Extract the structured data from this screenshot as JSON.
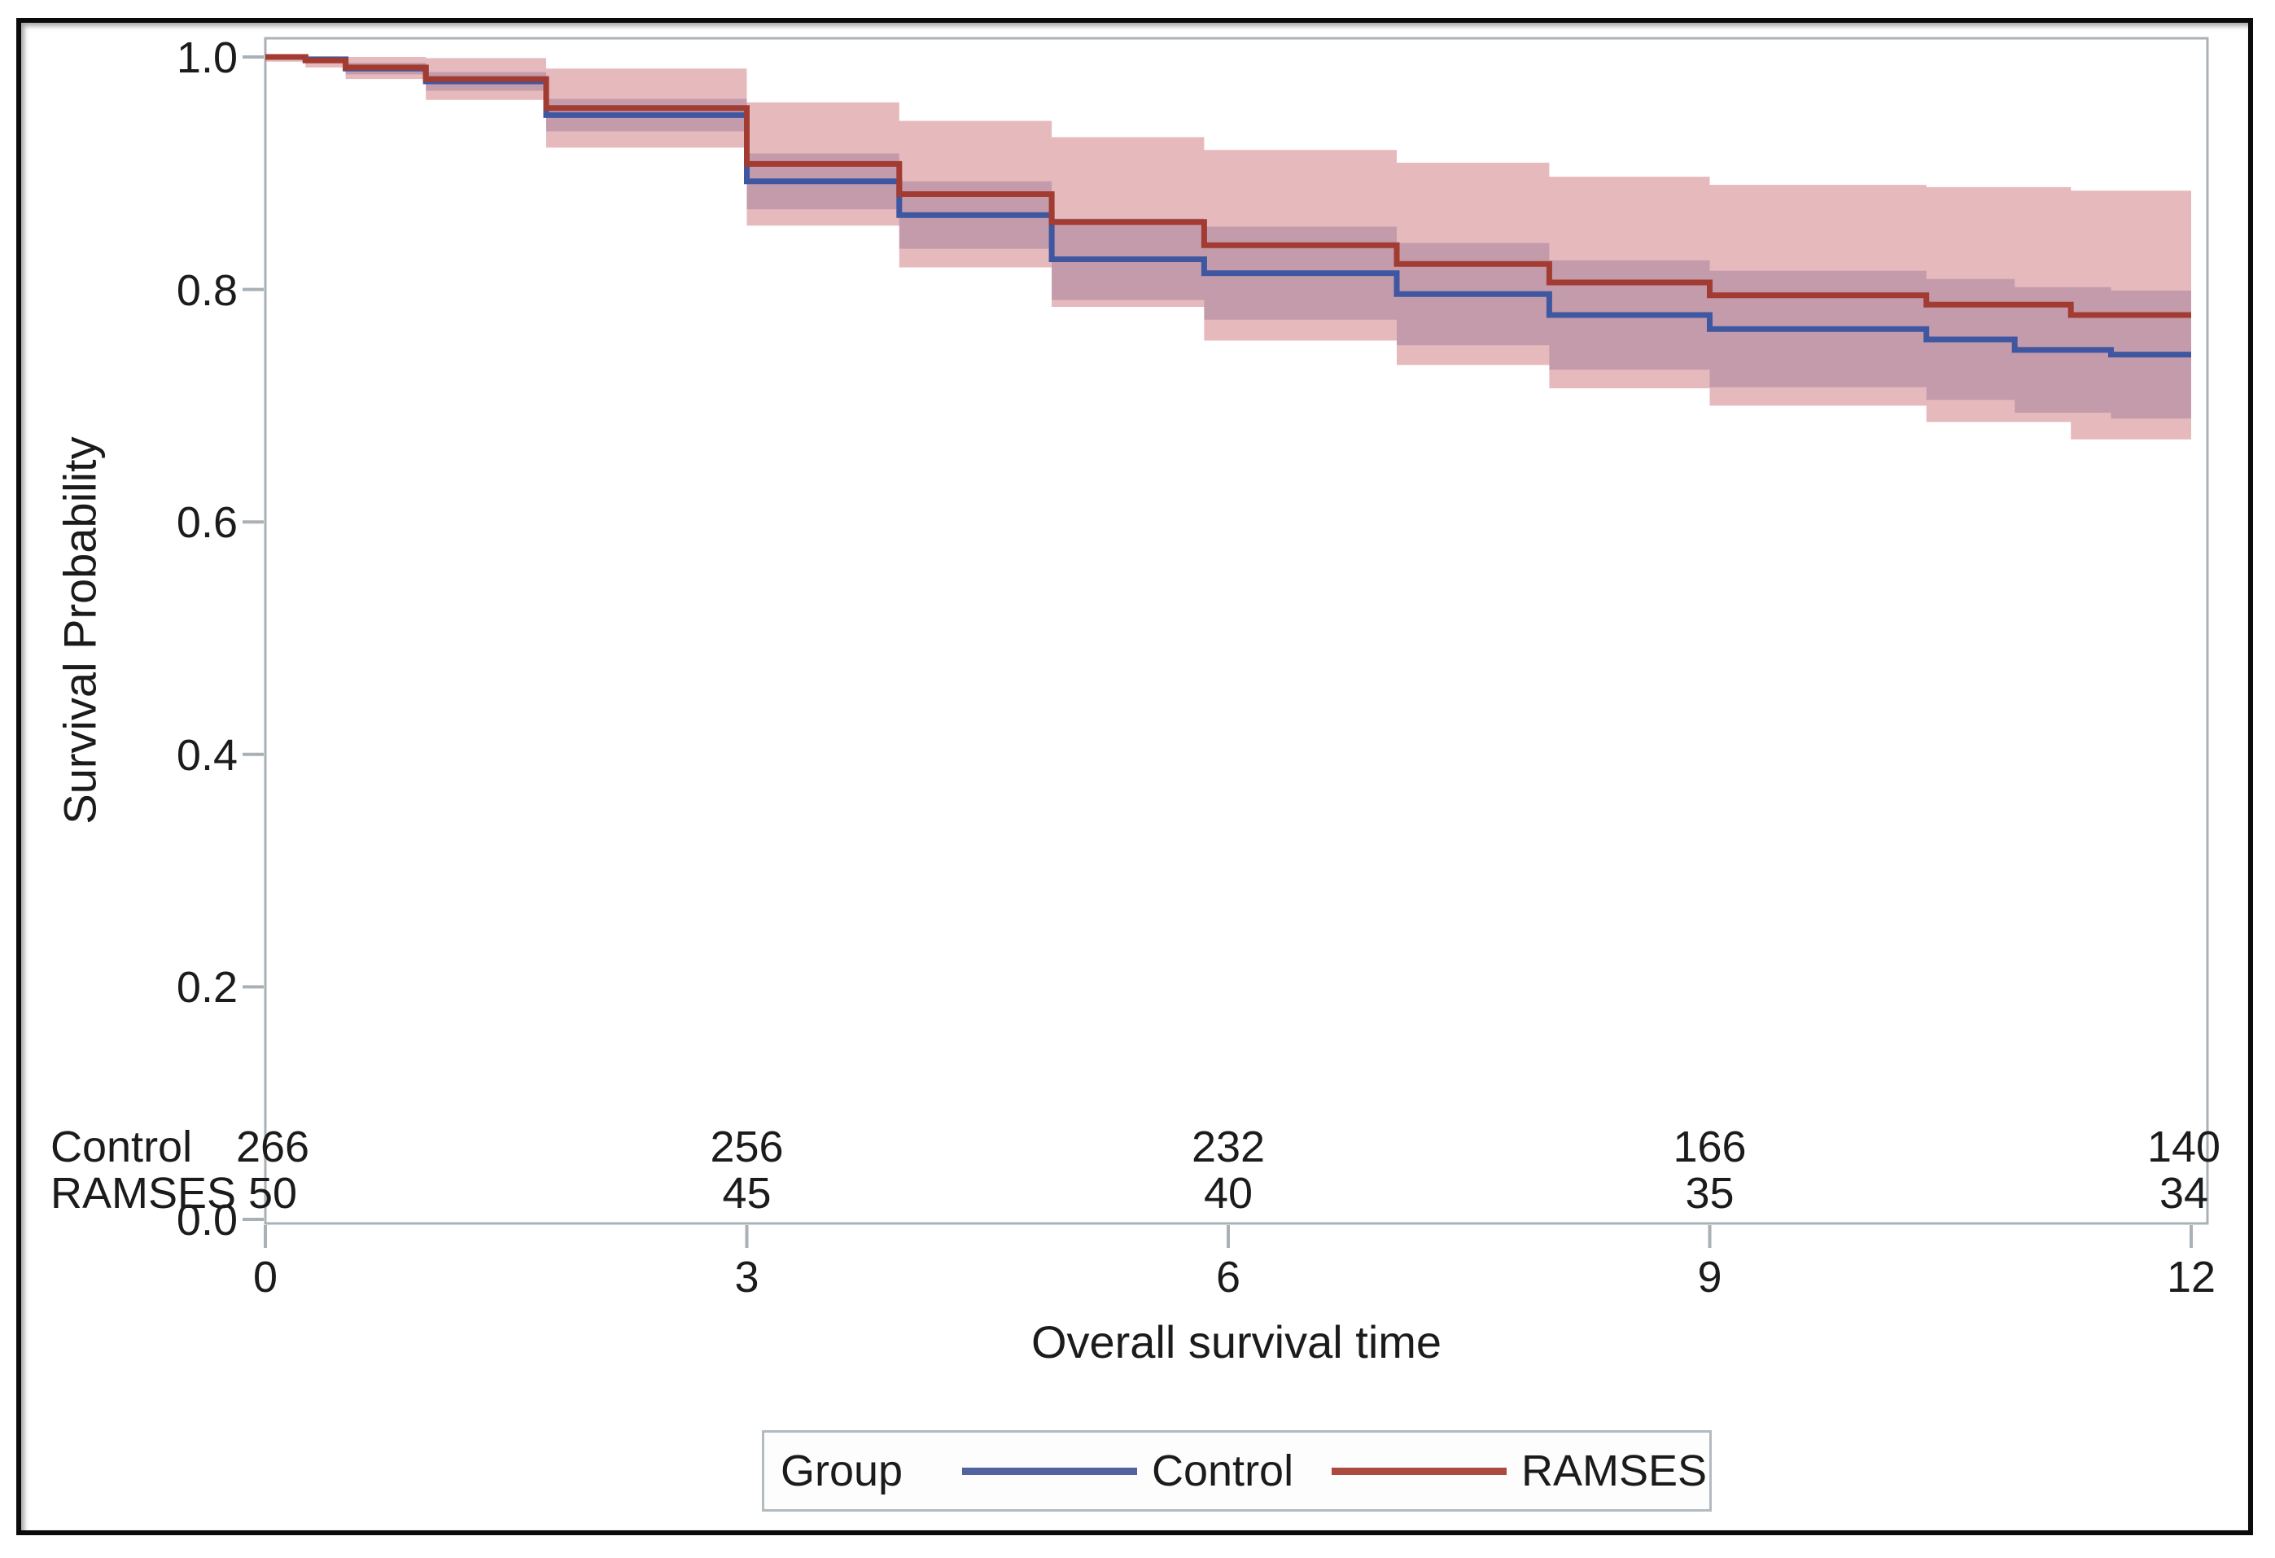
{
  "chart_data": {
    "type": "line",
    "subtype": "kaplan-meier-step-with-confidence-bands",
    "title": "",
    "xlabel": "Overall survival time",
    "ylabel": "Survival Probability",
    "xlim": [
      0,
      12
    ],
    "ylim": [
      0.0,
      1.0
    ],
    "grid": false,
    "x_ticks": [
      {
        "value": 0,
        "label": "0"
      },
      {
        "value": 3,
        "label": "3"
      },
      {
        "value": 6,
        "label": "6"
      },
      {
        "value": 9,
        "label": "9"
      },
      {
        "value": 12,
        "label": "12"
      }
    ],
    "y_ticks": [
      {
        "value": 1.0,
        "label": "1.0"
      },
      {
        "value": 0.8,
        "label": "0.8"
      },
      {
        "value": 0.6,
        "label": "0.6"
      },
      {
        "value": 0.4,
        "label": "0.4"
      },
      {
        "value": 0.2,
        "label": "0.2"
      },
      {
        "value": 0.0,
        "label": "0.0"
      }
    ],
    "series": [
      {
        "name": "Control",
        "line_color": "#3F57A0",
        "band_fill": "rgba(104,78,128,0.28)",
        "steps": [
          [
            0,
            1.0
          ],
          [
            0.25,
            0.998
          ],
          [
            0.5,
            0.99
          ],
          [
            1.0,
            0.979
          ],
          [
            1.75,
            0.95
          ],
          [
            3.0,
            0.893
          ],
          [
            3.95,
            0.864
          ],
          [
            4.9,
            0.826
          ],
          [
            5.85,
            0.814
          ],
          [
            7.05,
            0.796
          ],
          [
            8.0,
            0.778
          ],
          [
            9.0,
            0.766
          ],
          [
            10.35,
            0.757
          ],
          [
            10.9,
            0.748
          ],
          [
            11.5,
            0.744
          ],
          [
            12,
            0.744
          ]
        ],
        "ci": [
          [
            0,
            0.998,
            1.0
          ],
          [
            0.25,
            0.995,
            1.0
          ],
          [
            0.5,
            0.985,
            0.995
          ],
          [
            1.0,
            0.971,
            0.987
          ],
          [
            1.75,
            0.936,
            0.964
          ],
          [
            3.0,
            0.869,
            0.917
          ],
          [
            3.95,
            0.835,
            0.893
          ],
          [
            4.9,
            0.791,
            0.861
          ],
          [
            5.85,
            0.774,
            0.854
          ],
          [
            7.05,
            0.752,
            0.84
          ],
          [
            8.0,
            0.731,
            0.825
          ],
          [
            9.0,
            0.716,
            0.816
          ],
          [
            10.35,
            0.705,
            0.809
          ],
          [
            10.9,
            0.694,
            0.802
          ],
          [
            11.5,
            0.689,
            0.799
          ]
        ]
      },
      {
        "name": "RAMSES",
        "line_color": "#A23B31",
        "band_fill": "rgba(214,142,147,0.62)",
        "steps": [
          [
            0,
            1.0
          ],
          [
            0.25,
            0.997
          ],
          [
            0.5,
            0.991
          ],
          [
            1.0,
            0.981
          ],
          [
            1.75,
            0.956
          ],
          [
            3.0,
            0.908
          ],
          [
            3.95,
            0.882
          ],
          [
            4.9,
            0.858
          ],
          [
            5.85,
            0.838
          ],
          [
            7.05,
            0.822
          ],
          [
            8.0,
            0.806
          ],
          [
            9.0,
            0.795
          ],
          [
            10.35,
            0.787
          ],
          [
            11.25,
            0.778
          ],
          [
            12,
            0.778
          ]
        ],
        "ci": [
          [
            0,
            0.996,
            1.0
          ],
          [
            0.25,
            0.991,
            1.0
          ],
          [
            0.5,
            0.981,
            1.0
          ],
          [
            1.0,
            0.963,
            0.999
          ],
          [
            1.75,
            0.922,
            0.99
          ],
          [
            3.0,
            0.855,
            0.961
          ],
          [
            3.95,
            0.819,
            0.945
          ],
          [
            4.9,
            0.785,
            0.931
          ],
          [
            5.85,
            0.756,
            0.92
          ],
          [
            7.05,
            0.735,
            0.909
          ],
          [
            8.0,
            0.715,
            0.897
          ],
          [
            9.0,
            0.7,
            0.89
          ],
          [
            10.35,
            0.686,
            0.888
          ],
          [
            11.25,
            0.671,
            0.885
          ]
        ]
      }
    ],
    "at_risk_table": {
      "rows": [
        {
          "label": "Control",
          "counts": [
            "266",
            "256",
            "232",
            "166",
            "140"
          ]
        },
        {
          "label": "RAMSES",
          "counts": [
            "50",
            "45",
            "40",
            "35",
            "34"
          ]
        }
      ]
    },
    "legend": {
      "title": "Group",
      "position": "bottom-center",
      "entries": [
        {
          "label": "Control",
          "color": "#52639F"
        },
        {
          "label": "RAMSES",
          "color": "#AC4A3F"
        }
      ]
    },
    "frame_color": "#A9B1B6",
    "text_color": "#1b1b1b"
  }
}
